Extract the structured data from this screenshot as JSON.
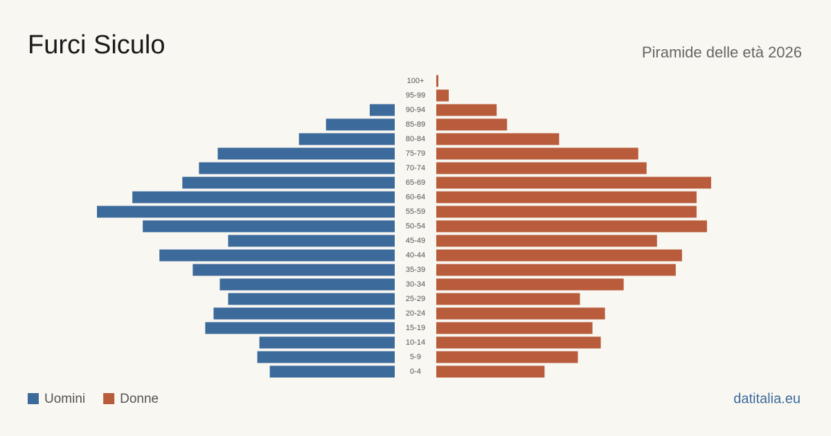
{
  "chart_data": {
    "type": "pyramid",
    "title": "Furci Siculo",
    "subtitle": "Piramide delle età 2026",
    "source": "datitalia.eu",
    "categories": [
      "100+",
      "95-99",
      "90-94",
      "85-89",
      "80-84",
      "75-79",
      "70-74",
      "65-69",
      "60-64",
      "55-59",
      "50-54",
      "45-49",
      "40-44",
      "35-39",
      "30-34",
      "25-29",
      "20-24",
      "15-19",
      "10-14",
      "5-9",
      "0-4"
    ],
    "series": [
      {
        "name": "Uomini",
        "color": "#3b6a9b",
        "side": "left",
        "values": [
          0,
          0,
          12,
          33,
          46,
          85,
          94,
          102,
          126,
          143,
          121,
          80,
          113,
          97,
          84,
          80,
          87,
          91,
          65,
          66,
          60
        ]
      },
      {
        "name": "Donne",
        "color": "#b85c3c",
        "side": "right",
        "values": [
          1,
          6,
          29,
          34,
          59,
          97,
          101,
          132,
          125,
          125,
          130,
          106,
          118,
          115,
          90,
          69,
          81,
          75,
          79,
          68,
          52
        ]
      }
    ]
  }
}
